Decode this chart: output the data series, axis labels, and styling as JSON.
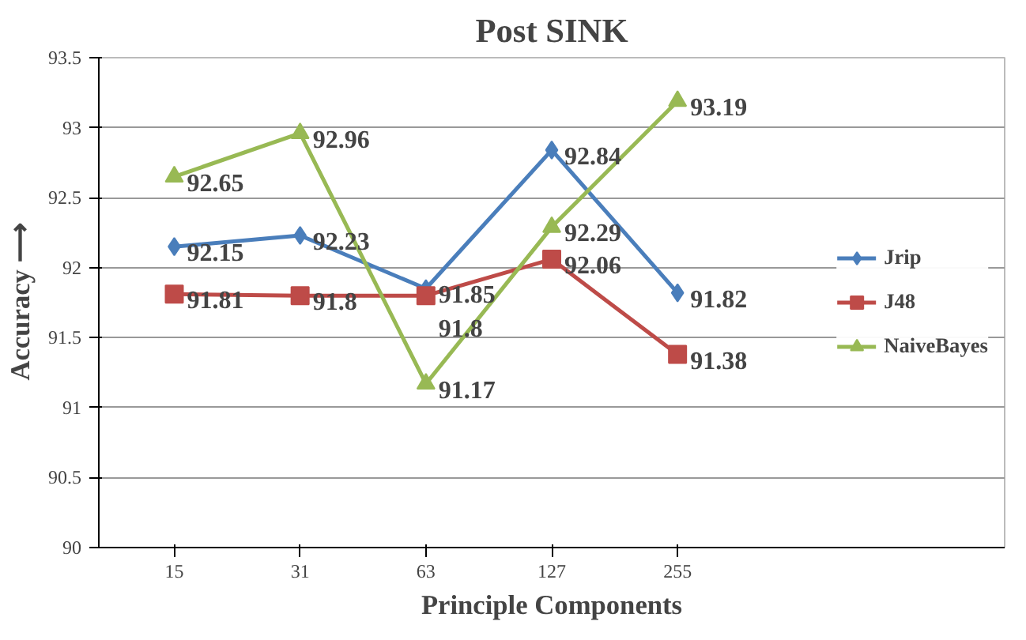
{
  "chart_data": {
    "type": "line",
    "title": "Post SINK",
    "xlabel": "Principle Components",
    "ylabel": "Accuracy ⟶",
    "categories": [
      "15",
      "31",
      "63",
      "127",
      "255"
    ],
    "ylim": [
      90,
      93.5
    ],
    "yticks": [
      90,
      {
        "value": 90.5,
        "label": "90.5"
      },
      91,
      {
        "value": 91.5,
        "label": "91.5"
      },
      92,
      {
        "value": 92.5,
        "label": "92.5"
      },
      93,
      {
        "value": 93.5,
        "label": "93.5"
      }
    ],
    "grid": "y",
    "legend": "right",
    "data_labels": true,
    "series": [
      {
        "name": "Jrip",
        "color": "#4a7ebb",
        "marker": "diamond",
        "values": [
          92.15,
          92.23,
          91.85,
          92.84,
          91.82
        ]
      },
      {
        "name": "J48",
        "color": "#be4b48",
        "marker": "square",
        "values": [
          91.81,
          91.8,
          91.8,
          92.06,
          91.38
        ]
      },
      {
        "name": "NaiveBayes",
        "color": "#98b954",
        "marker": "triangle",
        "values": [
          92.65,
          92.96,
          91.17,
          92.29,
          93.19
        ]
      }
    ]
  }
}
